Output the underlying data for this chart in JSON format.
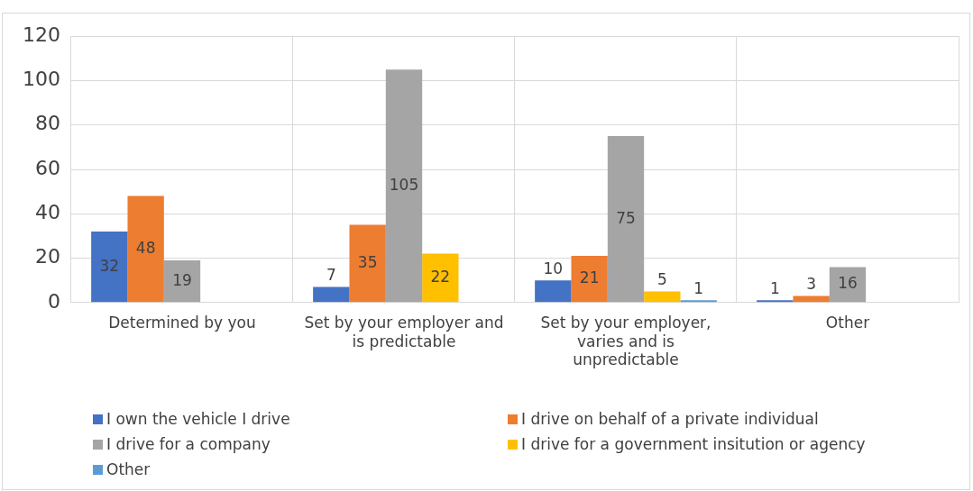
{
  "chart_data": {
    "type": "bar",
    "categories": [
      "Determined by you",
      "Set by your employer and is predictable",
      "Set by your employer, varies and is unpredictable",
      "Other"
    ],
    "series": [
      {
        "name": "I own the vehicle I drive",
        "color": "#4472c4",
        "values": [
          32,
          7,
          10,
          1
        ]
      },
      {
        "name": "I drive on behalf of a private individual",
        "color": "#ed7d31",
        "values": [
          48,
          35,
          21,
          3
        ]
      },
      {
        "name": "I drive for a company",
        "color": "#a5a5a5",
        "values": [
          19,
          105,
          75,
          16
        ]
      },
      {
        "name": "I drive for a government insitution or agency",
        "color": "#ffc000",
        "values": [
          null,
          22,
          5,
          null
        ]
      },
      {
        "name": "Other",
        "color": "#5b9bd5",
        "values": [
          null,
          null,
          1,
          null
        ]
      }
    ],
    "ylim": [
      0,
      120
    ],
    "yticks": [
      0,
      20,
      40,
      60,
      80,
      100,
      120
    ],
    "grid": true,
    "legend": "bottom",
    "data_labels": true
  }
}
